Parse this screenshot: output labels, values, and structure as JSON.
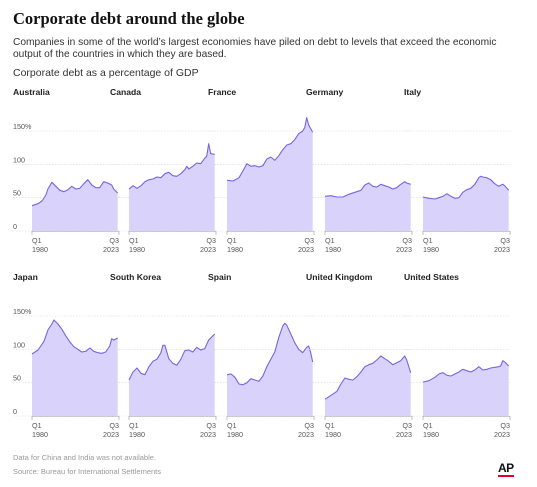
{
  "title": "Corporate debt around the globe",
  "subtitle": "Companies in some of the world’s largest economies have piled on debt to levels that exceed the economic output of the countries in which they are based.",
  "unit_label": "Corporate debt as a percentage of GDP",
  "note": "Data for China and India was not available.",
  "source": "Source: Bureau for International Settlements",
  "logo": "AP",
  "colors": {
    "fill": "#d9d2fb",
    "line": "#7b63e0",
    "grid": "#d9d9d9"
  },
  "chart_data": {
    "type": "area",
    "x_start": "Q1 1980",
    "x_end": "Q3 2023",
    "x_tick_labels": [
      {
        "q": "Q1",
        "year": "1980"
      },
      {
        "q": "Q3",
        "year": "2023"
      }
    ],
    "y_ticks": [
      {
        "value": 0,
        "label": "0"
      },
      {
        "value": 50,
        "label": "50"
      },
      {
        "value": 100,
        "label": "100"
      },
      {
        "value": 150,
        "label": "150%"
      }
    ],
    "ylim": [
      0,
      180
    ],
    "grid": true,
    "panels": [
      {
        "name": "Australia",
        "years": [
          1980,
          1983,
          1985,
          1987,
          1988,
          1990,
          1992,
          1994,
          1996,
          1998,
          2000,
          2002,
          2004,
          2006,
          2008,
          2010,
          2012,
          2014,
          2016,
          2018,
          2020,
          2021,
          2023
        ],
        "values": [
          38,
          41,
          45,
          54,
          63,
          73,
          67,
          61,
          59,
          62,
          67,
          63,
          64,
          71,
          77,
          69,
          65,
          65,
          74,
          72,
          69,
          63,
          57
        ]
      },
      {
        "name": "Canada",
        "years": [
          1980,
          1982,
          1984,
          1986,
          1988,
          1990,
          1992,
          1994,
          1996,
          1998,
          2000,
          2002,
          2004,
          2006,
          2008,
          2009,
          2010,
          2012,
          2014,
          2016,
          2018,
          2019,
          2020,
          2021,
          2023
        ],
        "values": [
          63,
          68,
          64,
          68,
          74,
          77,
          78,
          81,
          80,
          86,
          88,
          83,
          82,
          86,
          92,
          97,
          93,
          97,
          102,
          101,
          109,
          112,
          131,
          116,
          115
        ]
      },
      {
        "name": "France",
        "years": [
          1980,
          1983,
          1986,
          1988,
          1990,
          1992,
          1994,
          1996,
          1998,
          2000,
          2002,
          2004,
          2006,
          2008,
          2010,
          2012,
          2014,
          2016,
          2018,
          2019,
          2020,
          2021,
          2023
        ],
        "values": [
          76,
          75,
          80,
          90,
          101,
          97,
          98,
          96,
          98,
          108,
          111,
          106,
          113,
          122,
          129,
          131,
          137,
          146,
          150,
          155,
          170,
          159,
          148
        ]
      },
      {
        "name": "Germany",
        "years": [
          1980,
          1983,
          1986,
          1989,
          1992,
          1995,
          1998,
          2000,
          2002,
          2004,
          2006,
          2008,
          2010,
          2012,
          2014,
          2016,
          2018,
          2020,
          2021,
          2023
        ],
        "values": [
          52,
          53,
          51,
          51,
          55,
          58,
          61,
          69,
          72,
          67,
          66,
          70,
          68,
          66,
          63,
          65,
          70,
          74,
          72,
          70
        ]
      },
      {
        "name": "Italy",
        "years": [
          1980,
          1983,
          1986,
          1988,
          1990,
          1992,
          1994,
          1996,
          1998,
          2000,
          2002,
          2004,
          2006,
          2008,
          2009,
          2010,
          2012,
          2014,
          2016,
          2018,
          2020,
          2021,
          2023
        ],
        "values": [
          51,
          49,
          48,
          50,
          52,
          56,
          52,
          49,
          50,
          58,
          62,
          64,
          70,
          80,
          82,
          81,
          80,
          77,
          71,
          67,
          70,
          68,
          61
        ]
      },
      {
        "name": "Japan",
        "years": [
          1980,
          1983,
          1986,
          1988,
          1990,
          1991,
          1993,
          1995,
          1997,
          1999,
          2001,
          2003,
          2005,
          2007,
          2009,
          2011,
          2013,
          2015,
          2017,
          2019,
          2020,
          2021,
          2023
        ],
        "values": [
          93,
          99,
          112,
          129,
          138,
          144,
          138,
          130,
          120,
          111,
          104,
          100,
          96,
          97,
          102,
          97,
          95,
          94,
          96,
          105,
          116,
          114,
          117
        ]
      },
      {
        "name": "South Korea",
        "years": [
          1980,
          1982,
          1984,
          1986,
          1988,
          1990,
          1992,
          1994,
          1996,
          1997,
          1998,
          2000,
          2002,
          2004,
          2006,
          2008,
          2010,
          2012,
          2014,
          2016,
          2018,
          2020,
          2021,
          2022,
          2023
        ],
        "values": [
          54,
          66,
          72,
          64,
          62,
          74,
          82,
          85,
          95,
          106,
          106,
          86,
          79,
          76,
          85,
          98,
          99,
          96,
          103,
          99,
          101,
          114,
          117,
          120,
          123
        ]
      },
      {
        "name": "Spain",
        "years": [
          1980,
          1982,
          1984,
          1986,
          1988,
          1990,
          1992,
          1994,
          1996,
          1998,
          2000,
          2002,
          2004,
          2006,
          2008,
          2009,
          2010,
          2012,
          2014,
          2016,
          2018,
          2020,
          2021,
          2022,
          2023
        ],
        "values": [
          62,
          63,
          58,
          48,
          47,
          50,
          56,
          54,
          52,
          60,
          74,
          85,
          96,
          118,
          135,
          139,
          136,
          123,
          110,
          100,
          95,
          103,
          105,
          95,
          81
        ]
      },
      {
        "name": "United Kingdom",
        "years": [
          1980,
          1983,
          1986,
          1988,
          1990,
          1992,
          1994,
          1996,
          1998,
          2000,
          2002,
          2004,
          2006,
          2008,
          2009,
          2010,
          2012,
          2014,
          2016,
          2018,
          2020,
          2021,
          2023
        ],
        "values": [
          25,
          31,
          37,
          48,
          57,
          55,
          54,
          59,
          66,
          74,
          77,
          79,
          84,
          90,
          88,
          86,
          82,
          77,
          80,
          83,
          90,
          84,
          65
        ]
      },
      {
        "name": "United States",
        "years": [
          1980,
          1983,
          1986,
          1988,
          1990,
          1992,
          1994,
          1996,
          1998,
          2000,
          2002,
          2004,
          2006,
          2008,
          2010,
          2012,
          2014,
          2016,
          2018,
          2019,
          2020,
          2021,
          2023
        ],
        "values": [
          51,
          53,
          58,
          63,
          65,
          61,
          60,
          63,
          66,
          70,
          68,
          66,
          69,
          74,
          69,
          70,
          72,
          73,
          74,
          75,
          83,
          81,
          75
        ]
      }
    ]
  }
}
